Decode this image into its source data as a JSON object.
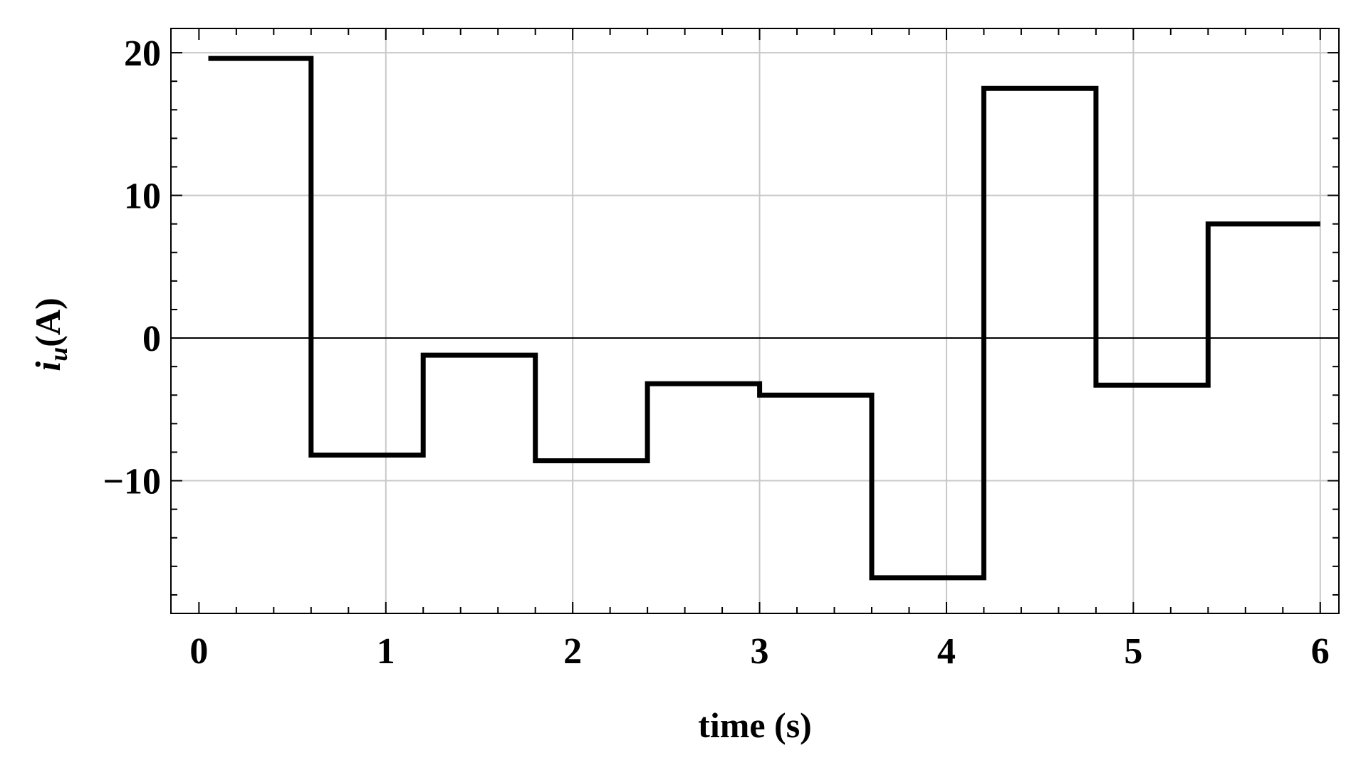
{
  "chart_data": {
    "type": "line",
    "xlabel": "time (s)",
    "ylabel_main": "i",
    "ylabel_sub": "u",
    "ylabel_unit": "(A)",
    "xlim": [
      -0.15,
      6.1
    ],
    "ylim": [
      -19.3,
      21.7
    ],
    "x_ticks": [
      0,
      1,
      2,
      3,
      4,
      5,
      6
    ],
    "y_ticks": [
      -10,
      0,
      10,
      20
    ],
    "x_tick_labels": [
      "0",
      "1",
      "2",
      "3",
      "4",
      "5",
      "6"
    ],
    "y_tick_labels": [
      "−10",
      "0",
      "10",
      "20"
    ],
    "x_minor_step": 0.2,
    "y_minor_step": 2,
    "grid": true,
    "zero_line": true,
    "line_color": "#000000",
    "series": [
      {
        "x": [
          0.05,
          0.6,
          0.6,
          1.2,
          1.2,
          1.8,
          1.8,
          2.4,
          2.4,
          3.0,
          3.0,
          3.6,
          3.6,
          4.2,
          4.2,
          4.8,
          4.8,
          5.4,
          5.4,
          6.0
        ],
        "values": [
          19.6,
          19.6,
          -8.2,
          -8.2,
          -1.2,
          -1.2,
          -8.6,
          -8.6,
          -3.2,
          -3.2,
          -4.0,
          -4.0,
          -16.8,
          -16.8,
          17.5,
          17.5,
          -3.3,
          -3.3,
          8.0,
          8.0
        ]
      }
    ]
  }
}
